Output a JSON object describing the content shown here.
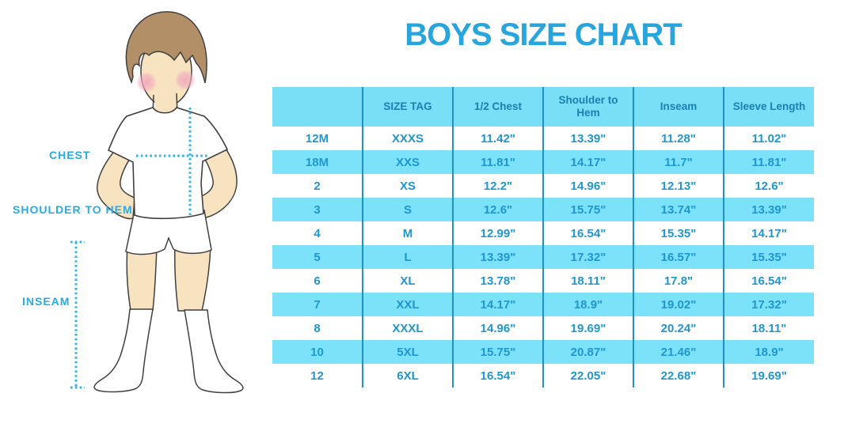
{
  "title": "BOYS SIZE CHART",
  "diagram": {
    "labels": {
      "chest": "CHEST",
      "shoulder_to_hem": "SHOULDER TO HEM",
      "inseam": "INSEAM"
    }
  },
  "chart_data": {
    "type": "table",
    "title": "BOYS SIZE CHART",
    "columns": [
      "",
      "SIZE TAG",
      "1/2 Chest",
      "Shoulder to Hem",
      "Inseam",
      "Sleeve Length"
    ],
    "rows": [
      [
        "12M",
        "XXXS",
        "11.42\"",
        "13.39\"",
        "11.28\"",
        "11.02\""
      ],
      [
        "18M",
        "XXS",
        "11.81\"",
        "14.17\"",
        "11.7\"",
        "11.81\""
      ],
      [
        "2",
        "XS",
        "12.2\"",
        "14.96\"",
        "12.13\"",
        "12.6\""
      ],
      [
        "3",
        "S",
        "12.6\"",
        "15.75\"",
        "13.74\"",
        "13.39\""
      ],
      [
        "4",
        "M",
        "12.99\"",
        "16.54\"",
        "15.35\"",
        "14.17\""
      ],
      [
        "5",
        "L",
        "13.39\"",
        "17.32\"",
        "16.57\"",
        "15.35\""
      ],
      [
        "6",
        "XL",
        "13.78\"",
        "18.11\"",
        "17.8\"",
        "16.54\""
      ],
      [
        "7",
        "XXL",
        "14.17\"",
        "18.9\"",
        "19.02\"",
        "17.32\""
      ],
      [
        "8",
        "XXXL",
        "14.96\"",
        "19.69\"",
        "20.24\"",
        "18.11\""
      ],
      [
        "10",
        "5XL",
        "15.75\"",
        "20.87\"",
        "21.46\"",
        "18.9\""
      ],
      [
        "12",
        "6XL",
        "16.54\"",
        "22.05\"",
        "22.68\"",
        "19.69\""
      ]
    ],
    "layout": {
      "stripe_pattern": "alternating starting white",
      "grid": "vertical column separators only"
    }
  },
  "colors": {
    "title_blue": "#29A5DE",
    "label_blue": "#29ABE2",
    "dotted_line_blue": "#2FB5E8",
    "stripe_blue": "#7CE2F9",
    "header_blue": "#79DFF7",
    "grid_line_blue": "#2191C8",
    "cell_text_blue": "#1F96CE",
    "skin": "#F8E3C0",
    "hair_brown": "#B28F66",
    "blush_pink": "#F2A9BE"
  }
}
